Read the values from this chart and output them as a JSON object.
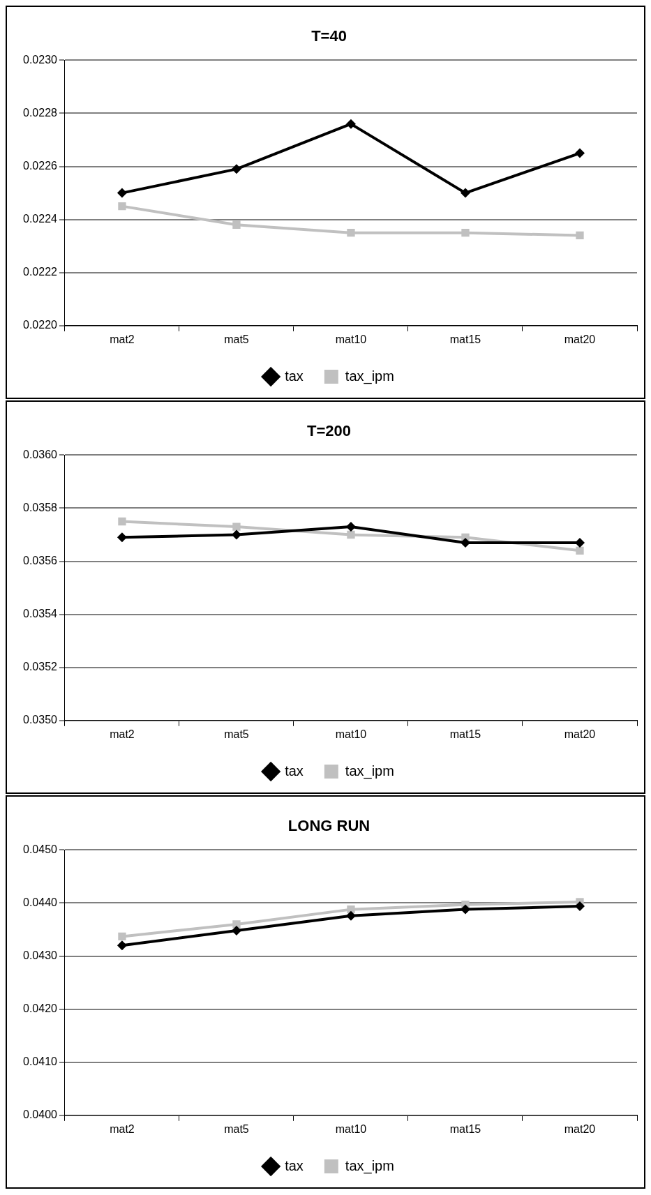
{
  "chart_data": [
    {
      "type": "line",
      "title": "T=40",
      "categories": [
        "mat2",
        "mat5",
        "mat10",
        "mat15",
        "mat20"
      ],
      "series": [
        {
          "name": "tax",
          "color": "#000000",
          "marker": "diamond",
          "values": [
            0.0225,
            0.02259,
            0.02276,
            0.0225,
            0.02265
          ]
        },
        {
          "name": "tax_ipm",
          "color": "#c0c0c0",
          "marker": "square",
          "values": [
            0.02245,
            0.02238,
            0.02235,
            0.02235,
            0.02234
          ]
        }
      ],
      "ylim": [
        0.022,
        0.023
      ],
      "yticks": [
        {
          "value": 0.022,
          "label": "0.0220"
        },
        {
          "value": 0.0222,
          "label": "0.0222"
        },
        {
          "value": 0.0224,
          "label": "0.0224"
        },
        {
          "value": 0.0226,
          "label": "0.0226"
        },
        {
          "value": 0.0228,
          "label": "0.0228"
        },
        {
          "value": 0.023,
          "label": "0.0230"
        }
      ],
      "grid": "y",
      "legend": "bottom",
      "line_style": "solid"
    },
    {
      "type": "line",
      "title": "T=200",
      "categories": [
        "mat2",
        "mat5",
        "mat10",
        "mat15",
        "mat20"
      ],
      "series": [
        {
          "name": "tax",
          "color": "#000000",
          "marker": "diamond",
          "values": [
            0.03569,
            0.0357,
            0.03573,
            0.03567,
            0.03567
          ]
        },
        {
          "name": "tax_ipm",
          "color": "#c0c0c0",
          "marker": "square",
          "values": [
            0.03575,
            0.03573,
            0.0357,
            0.03569,
            0.03564
          ]
        }
      ],
      "ylim": [
        0.035,
        0.036
      ],
      "yticks": [
        {
          "value": 0.035,
          "label": "0.0350"
        },
        {
          "value": 0.0352,
          "label": "0.0352"
        },
        {
          "value": 0.0354,
          "label": "0.0354"
        },
        {
          "value": 0.0356,
          "label": "0.0356"
        },
        {
          "value": 0.0358,
          "label": "0.0358"
        },
        {
          "value": 0.036,
          "label": "0.0360"
        }
      ],
      "grid": "y",
      "legend": "bottom",
      "line_style": "solid"
    },
    {
      "type": "line",
      "title": "LONG RUN",
      "categories": [
        "mat2",
        "mat5",
        "mat10",
        "mat15",
        "mat20"
      ],
      "series": [
        {
          "name": "tax",
          "color": "#000000",
          "marker": "diamond",
          "values": [
            0.0432,
            0.04348,
            0.04376,
            0.04388,
            0.04394
          ]
        },
        {
          "name": "tax_ipm",
          "color": "#c0c0c0",
          "marker": "square",
          "values": [
            0.04337,
            0.0436,
            0.04388,
            0.04397,
            0.04402
          ]
        }
      ],
      "ylim": [
        0.04,
        0.045
      ],
      "yticks": [
        {
          "value": 0.04,
          "label": "0.0400"
        },
        {
          "value": 0.041,
          "label": "0.0410"
        },
        {
          "value": 0.042,
          "label": "0.0420"
        },
        {
          "value": 0.043,
          "label": "0.0430"
        },
        {
          "value": 0.044,
          "label": "0.0440"
        },
        {
          "value": 0.045,
          "label": "0.0450"
        }
      ],
      "grid": "y",
      "legend": "bottom",
      "line_style": "solid"
    }
  ]
}
